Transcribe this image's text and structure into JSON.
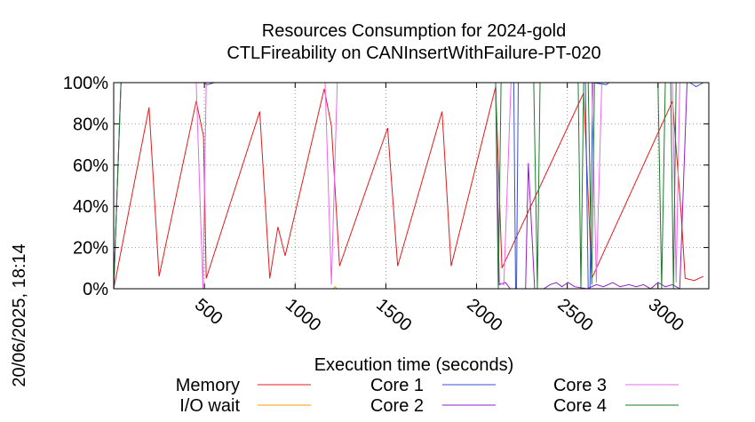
{
  "chart_data": {
    "type": "line",
    "title": "Resources Consumption for 2024-gold",
    "subtitle": "CTLFireability on CANInsertWithFailure-PT-020",
    "xlabel": "Execution time (seconds)",
    "side_label": "20/06/2025, 18:14",
    "xlim": [
      0,
      3280
    ],
    "ylim": [
      0,
      100
    ],
    "x_ticks": [
      500,
      1000,
      1500,
      2000,
      2500,
      3000
    ],
    "y_ticks": [
      0,
      20,
      40,
      60,
      80,
      100
    ],
    "y_tick_labels": [
      "0%",
      "20%",
      "40%",
      "60%",
      "80%",
      "100%"
    ],
    "grid": true,
    "legend_position": "bottom",
    "series": [
      {
        "name": "Memory",
        "color": "#e41a1c",
        "points": [
          [
            0,
            0
          ],
          [
            195,
            88
          ],
          [
            250,
            6
          ],
          [
            455,
            91
          ],
          [
            495,
            74
          ],
          [
            510,
            5
          ],
          [
            805,
            86
          ],
          [
            860,
            5
          ],
          [
            905,
            30
          ],
          [
            945,
            16
          ],
          [
            1160,
            97
          ],
          [
            1200,
            79
          ],
          [
            1245,
            11
          ],
          [
            1510,
            78
          ],
          [
            1565,
            11
          ],
          [
            1810,
            86
          ],
          [
            1860,
            11
          ],
          [
            2105,
            98
          ],
          [
            2140,
            10
          ],
          [
            2590,
            95
          ],
          [
            2635,
            5
          ],
          [
            3080,
            91
          ],
          [
            3125,
            40
          ],
          [
            3150,
            5
          ],
          [
            3200,
            4
          ],
          [
            3250,
            6
          ]
        ]
      },
      {
        "name": "I/O wait",
        "color": "#ff9900",
        "points": [
          [
            0,
            0
          ],
          [
            1210,
            0
          ],
          [
            1220,
            1
          ],
          [
            1230,
            0
          ],
          [
            3250,
            0
          ]
        ]
      },
      {
        "name": "Core 1",
        "color": "#3a4fd6",
        "points": [
          [
            0,
            0
          ],
          [
            40,
            100
          ],
          [
            495,
            100
          ],
          [
            515,
            99
          ],
          [
            555,
            100
          ],
          [
            2205,
            100
          ],
          [
            2215,
            0
          ],
          [
            2220,
            0
          ],
          [
            2230,
            100
          ],
          [
            2600,
            100
          ],
          [
            2615,
            0
          ],
          [
            2625,
            0
          ],
          [
            2640,
            100
          ],
          [
            2715,
            99
          ],
          [
            2730,
            100
          ],
          [
            3175,
            100
          ],
          [
            3210,
            98
          ],
          [
            3250,
            100
          ]
        ]
      },
      {
        "name": "Core 2",
        "color": "#8e1ec8",
        "points": [
          [
            0,
            0
          ],
          [
            40,
            100
          ],
          [
            2105,
            100
          ],
          [
            2125,
            2
          ],
          [
            2160,
            3
          ],
          [
            2185,
            0
          ],
          [
            2270,
            0
          ],
          [
            2285,
            61
          ],
          [
            2320,
            0
          ],
          [
            2370,
            0
          ],
          [
            2405,
            2
          ],
          [
            2440,
            3
          ],
          [
            2470,
            1
          ],
          [
            2505,
            3
          ],
          [
            2540,
            1
          ],
          [
            2610,
            0
          ],
          [
            2660,
            2
          ],
          [
            2700,
            1
          ],
          [
            2750,
            3
          ],
          [
            2790,
            1
          ],
          [
            2840,
            2
          ],
          [
            2880,
            1
          ],
          [
            2920,
            2
          ],
          [
            2960,
            0
          ],
          [
            3000,
            3
          ],
          [
            3040,
            1
          ],
          [
            3080,
            2
          ],
          [
            3120,
            0
          ],
          [
            3160,
            100
          ],
          [
            3250,
            100
          ]
        ]
      },
      {
        "name": "Core 3",
        "color": "#ee66ee",
        "points": [
          [
            0,
            0
          ],
          [
            40,
            100
          ],
          [
            455,
            100
          ],
          [
            492,
            0
          ],
          [
            510,
            100
          ],
          [
            1165,
            100
          ],
          [
            1200,
            2
          ],
          [
            1232,
            100
          ],
          [
            2105,
            100
          ],
          [
            2120,
            3
          ],
          [
            2150,
            2
          ],
          [
            2190,
            100
          ],
          [
            2635,
            100
          ],
          [
            2660,
            3
          ],
          [
            2690,
            100
          ],
          [
            3080,
            100
          ],
          [
            3100,
            3
          ],
          [
            3120,
            100
          ],
          [
            3250,
            100
          ]
        ]
      },
      {
        "name": "Core 4",
        "color": "#1c7c2c",
        "points": [
          [
            0,
            0
          ],
          [
            40,
            100
          ],
          [
            2105,
            100
          ],
          [
            2120,
            0
          ],
          [
            2135,
            100
          ],
          [
            2315,
            100
          ],
          [
            2335,
            0
          ],
          [
            2350,
            100
          ],
          [
            2560,
            100
          ],
          [
            2575,
            0
          ],
          [
            2590,
            100
          ],
          [
            2615,
            100
          ],
          [
            2635,
            2
          ],
          [
            2650,
            100
          ],
          [
            3000,
            100
          ],
          [
            3020,
            0
          ],
          [
            3040,
            100
          ],
          [
            3070,
            100
          ],
          [
            3085,
            0
          ],
          [
            3100,
            100
          ],
          [
            3250,
            100
          ]
        ]
      }
    ]
  }
}
